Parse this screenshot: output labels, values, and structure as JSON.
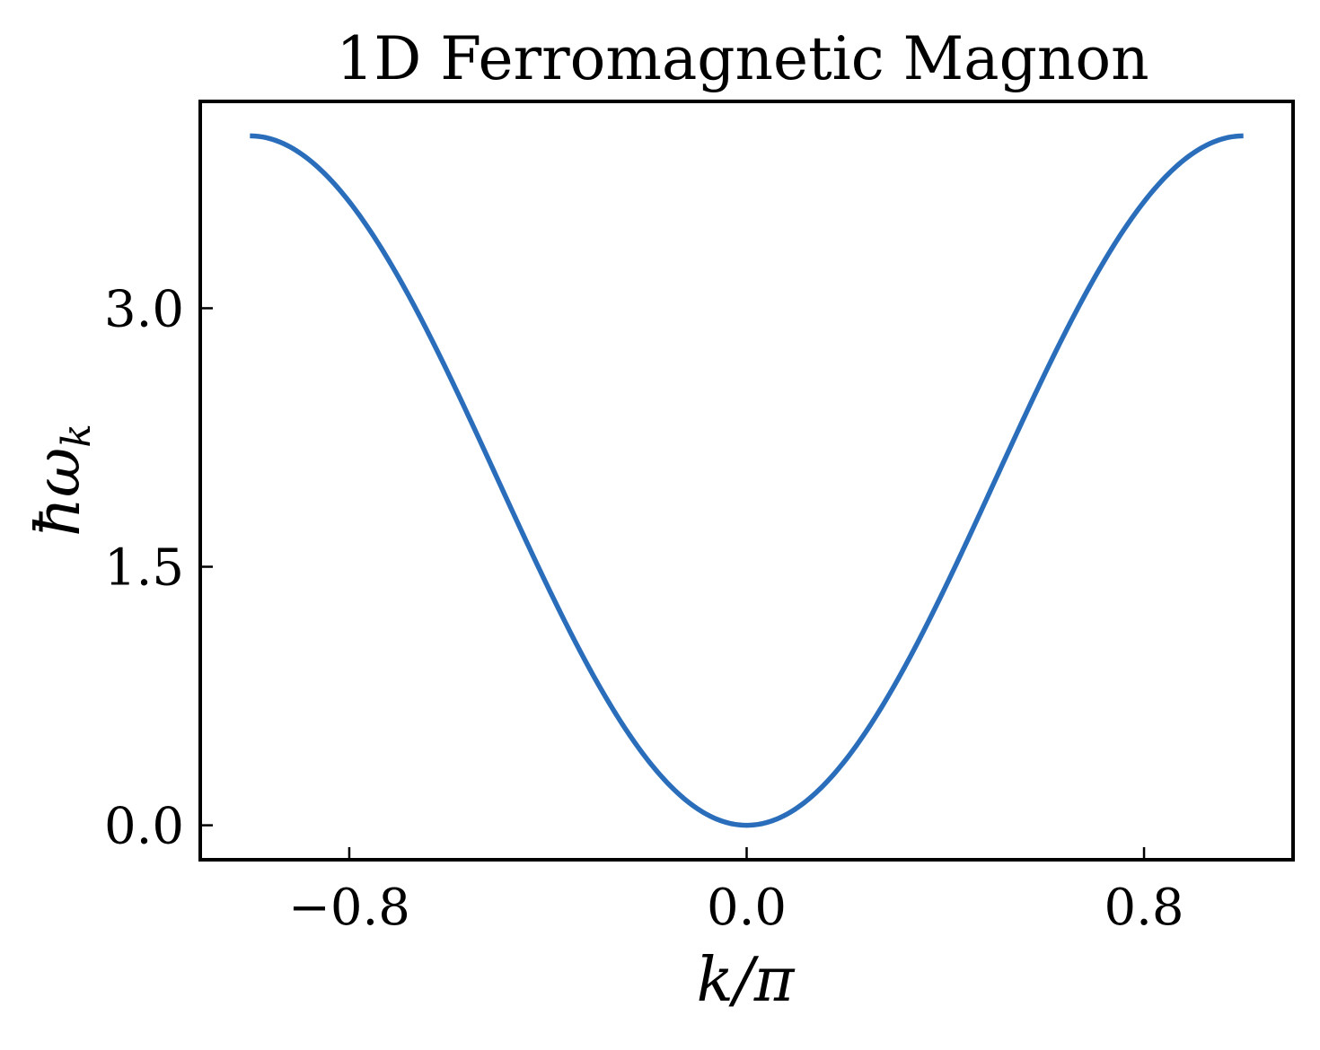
{
  "chart_data": {
    "type": "line",
    "title": "1D Ferromagnetic Magnon",
    "xlabel": "k/π",
    "ylabel": "ħω_k",
    "xlim": [
      -1.1,
      1.1
    ],
    "ylim": [
      -0.2,
      4.2
    ],
    "x_ticks": [
      -0.8,
      0.0,
      0.8
    ],
    "x_tick_labels": [
      "−0.8",
      "0.0",
      "0.8"
    ],
    "y_ticks": [
      0.0,
      1.5,
      3.0
    ],
    "y_tick_labels": [
      "0.0",
      "1.5",
      "3.0"
    ],
    "grid": false,
    "legend": "none",
    "series": [
      {
        "color": "#2a6ebb",
        "x": [
          -1.0,
          -0.9,
          -0.8,
          -0.7,
          -0.6,
          -0.5,
          -0.4,
          -0.3,
          -0.2,
          -0.1,
          0.0,
          0.1,
          0.2,
          0.3,
          0.4,
          0.5,
          0.6,
          0.7,
          0.8,
          0.9,
          1.0
        ],
        "y": [
          4.0,
          3.902,
          3.618,
          3.176,
          2.618,
          2.0,
          1.382,
          0.824,
          0.382,
          0.098,
          0.0,
          0.098,
          0.382,
          0.824,
          1.382,
          2.0,
          2.618,
          3.176,
          3.618,
          3.902,
          4.0
        ]
      }
    ]
  }
}
